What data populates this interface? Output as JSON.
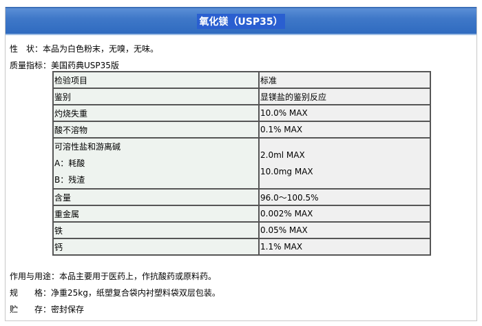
{
  "title": "氧化镁（USP35）",
  "properties": "性　状：本品为白色粉末，无嗅，无味。",
  "quality": "质量指标：美国药典USP35版",
  "table": {
    "header": [
      "检验项目",
      "标准"
    ],
    "rows": [
      {
        "item": "鉴别",
        "std": "显镁盐的鉴别反应"
      },
      {
        "item": "灼烧失重",
        "std": "10.0% MAX"
      },
      {
        "item": "酸不溶物",
        "std": "0.1% MAX"
      },
      {
        "item_lines": [
          "可溶性盐和游离碱",
          "A：耗酸",
          "B：残渣"
        ],
        "std_lines": [
          "2.0ml  MAX",
          "10.0mg MAX"
        ]
      },
      {
        "item": "含量",
        "std": "96.0～100.5%"
      },
      {
        "item": "重金属",
        "std": "0.002%  MAX"
      },
      {
        "item": "铁",
        "std": "0.05%  MAX"
      },
      {
        "item": "钙",
        "std": "1.1%  MAX"
      }
    ]
  },
  "usage": "作用与用途：本品主要用于医药上，作抗酸药或原料药。",
  "spec": "规　　格：净重25kg，纸塑复合袋内衬塑料袋双层包装。",
  "storage": "贮　　存：密封保存"
}
